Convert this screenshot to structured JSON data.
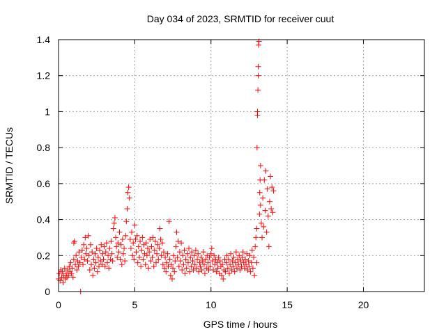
{
  "chart_data": {
    "type": "scatter",
    "title": "Day 034 of 2023, SRMTID for receiver cuut",
    "xlabel": "GPS time / hours",
    "ylabel": "SRMTID / TECUs",
    "xlim": [
      0,
      24
    ],
    "ylim": [
      0,
      1.4
    ],
    "xticks": [
      0,
      5,
      10,
      15,
      20
    ],
    "yticks": [
      0,
      0.2,
      0.4,
      0.6,
      0.8,
      1,
      1.2,
      1.4
    ],
    "ytick_labels": [
      "0",
      "0.2",
      "0.4",
      "0.6",
      "0.8",
      "1",
      "1.2",
      "1.4"
    ],
    "grid": true,
    "marker": "+",
    "color": "#ff0000",
    "series": [
      {
        "name": "SRMTID",
        "points": [
          [
            0.0,
            0.07
          ],
          [
            0.05,
            0.1
          ],
          [
            0.1,
            0.06
          ],
          [
            0.15,
            0.12
          ],
          [
            0.2,
            0.08
          ],
          [
            0.25,
            0.11
          ],
          [
            0.3,
            0.05
          ],
          [
            0.35,
            0.09
          ],
          [
            0.4,
            0.13
          ],
          [
            0.45,
            0.07
          ],
          [
            0.5,
            0.1
          ],
          [
            0.55,
            0.08
          ],
          [
            0.6,
            0.12
          ],
          [
            0.65,
            0.09
          ],
          [
            0.7,
            0.14
          ],
          [
            0.75,
            0.11
          ],
          [
            0.8,
            0.16
          ],
          [
            0.85,
            0.1
          ],
          [
            0.9,
            0.13
          ],
          [
            0.95,
            0.08
          ],
          [
            1.0,
            0.18
          ],
          [
            1.0,
            0.27
          ],
          [
            1.05,
            0.28
          ],
          [
            1.1,
            0.15
          ],
          [
            1.15,
            0.2
          ],
          [
            1.2,
            0.12
          ],
          [
            1.25,
            0.17
          ],
          [
            1.3,
            0.14
          ],
          [
            1.35,
            0.22
          ],
          [
            1.4,
            0.16
          ],
          [
            1.45,
            0.0
          ],
          [
            1.5,
            0.19
          ],
          [
            1.55,
            0.23
          ],
          [
            1.6,
            0.15
          ],
          [
            1.65,
            0.26
          ],
          [
            1.7,
            0.18
          ],
          [
            1.75,
            0.3
          ],
          [
            1.8,
            0.21
          ],
          [
            1.85,
            0.24
          ],
          [
            1.9,
            0.17
          ],
          [
            1.95,
            0.31
          ],
          [
            2.0,
            0.2
          ],
          [
            2.05,
            0.12
          ],
          [
            2.1,
            0.26
          ],
          [
            2.15,
            0.15
          ],
          [
            2.2,
            0.22
          ],
          [
            2.25,
            0.09
          ],
          [
            2.3,
            0.18
          ],
          [
            2.35,
            0.13
          ],
          [
            2.4,
            0.21
          ],
          [
            2.45,
            0.16
          ],
          [
            2.5,
            0.24
          ],
          [
            2.55,
            0.11
          ],
          [
            2.6,
            0.19
          ],
          [
            2.65,
            0.14
          ],
          [
            2.7,
            0.23
          ],
          [
            2.75,
            0.17
          ],
          [
            2.8,
            0.26
          ],
          [
            2.85,
            0.15
          ],
          [
            2.9,
            0.21
          ],
          [
            2.95,
            0.18
          ],
          [
            3.0,
            0.25
          ],
          [
            3.05,
            0.14
          ],
          [
            3.1,
            0.22
          ],
          [
            3.15,
            0.27
          ],
          [
            3.2,
            0.16
          ],
          [
            3.25,
            0.2
          ],
          [
            3.3,
            0.13
          ],
          [
            3.35,
            0.24
          ],
          [
            3.4,
            0.18
          ],
          [
            3.45,
            0.28
          ],
          [
            3.5,
            0.21
          ],
          [
            3.55,
            0.17
          ],
          [
            3.6,
            0.35
          ],
          [
            3.65,
            0.38
          ],
          [
            3.7,
            0.41
          ],
          [
            3.75,
            0.3
          ],
          [
            3.8,
            0.25
          ],
          [
            3.85,
            0.19
          ],
          [
            3.9,
            0.27
          ],
          [
            3.95,
            0.22
          ],
          [
            4.0,
            0.33
          ],
          [
            4.05,
            0.18
          ],
          [
            4.1,
            0.26
          ],
          [
            4.15,
            0.15
          ],
          [
            4.2,
            0.29
          ],
          [
            4.25,
            0.21
          ],
          [
            4.3,
            0.24
          ],
          [
            4.35,
            0.17
          ],
          [
            4.4,
            0.31
          ],
          [
            4.45,
            0.39
          ],
          [
            4.5,
            0.46
          ],
          [
            4.55,
            0.55
          ],
          [
            4.6,
            0.58
          ],
          [
            4.65,
            0.52
          ],
          [
            4.7,
            0.29
          ],
          [
            4.75,
            0.24
          ],
          [
            4.8,
            0.33
          ],
          [
            4.85,
            0.2
          ],
          [
            4.9,
            0.27
          ],
          [
            4.95,
            0.18
          ],
          [
            5.0,
            0.37
          ],
          [
            5.05,
            0.29
          ],
          [
            5.1,
            0.22
          ],
          [
            5.15,
            0.31
          ],
          [
            5.2,
            0.16
          ],
          [
            5.25,
            0.25
          ],
          [
            5.3,
            0.19
          ],
          [
            5.35,
            0.28
          ],
          [
            5.4,
            0.14
          ],
          [
            5.45,
            0.23
          ],
          [
            5.5,
            0.3
          ],
          [
            5.55,
            0.18
          ],
          [
            5.6,
            0.26
          ],
          [
            5.65,
            0.21
          ],
          [
            5.7,
            0.15
          ],
          [
            5.75,
            0.27
          ],
          [
            5.8,
            0.2
          ],
          [
            5.85,
            0.24
          ],
          [
            5.9,
            0.13
          ],
          [
            5.95,
            0.22
          ],
          [
            6.0,
            0.29
          ],
          [
            6.05,
            0.17
          ],
          [
            6.1,
            0.25
          ],
          [
            6.15,
            0.19
          ],
          [
            6.2,
            0.3
          ],
          [
            6.25,
            0.14
          ],
          [
            6.3,
            0.23
          ],
          [
            6.35,
            0.28
          ],
          [
            6.4,
            0.16
          ],
          [
            6.45,
            0.21
          ],
          [
            6.5,
            0.26
          ],
          [
            6.55,
            0.18
          ],
          [
            6.6,
            0.24
          ],
          [
            6.65,
            0.35
          ],
          [
            6.7,
            0.29
          ],
          [
            6.75,
            0.2
          ],
          [
            6.8,
            0.27
          ],
          [
            6.85,
            0.15
          ],
          [
            6.9,
            0.22
          ],
          [
            6.95,
            0.13
          ],
          [
            7.0,
            0.19
          ],
          [
            7.05,
            0.11
          ],
          [
            7.1,
            0.16
          ],
          [
            7.15,
            0.21
          ],
          [
            7.2,
            0.14
          ],
          [
            7.25,
            0.39
          ],
          [
            7.3,
            0.18
          ],
          [
            7.35,
            0.09
          ],
          [
            7.4,
            0.15
          ],
          [
            7.45,
            0.07
          ],
          [
            7.5,
            0.13
          ],
          [
            7.55,
            0.2
          ],
          [
            7.6,
            0.11
          ],
          [
            7.65,
            0.17
          ],
          [
            7.7,
            0.25
          ],
          [
            7.75,
            0.33
          ],
          [
            7.8,
            0.19
          ],
          [
            7.85,
            0.28
          ],
          [
            7.9,
            0.14
          ],
          [
            7.95,
            0.22
          ],
          [
            8.0,
            0.17
          ],
          [
            8.05,
            0.27
          ],
          [
            8.1,
            0.12
          ],
          [
            8.15,
            0.2
          ],
          [
            8.2,
            0.15
          ],
          [
            8.25,
            0.23
          ],
          [
            8.3,
            0.1
          ],
          [
            8.35,
            0.18
          ],
          [
            8.4,
            0.13
          ],
          [
            8.45,
            0.21
          ],
          [
            8.5,
            0.16
          ],
          [
            8.55,
            0.24
          ],
          [
            8.6,
            0.11
          ],
          [
            8.65,
            0.19
          ],
          [
            8.7,
            0.14
          ],
          [
            8.75,
            0.22
          ],
          [
            8.8,
            0.17
          ],
          [
            8.85,
            0.12
          ],
          [
            8.9,
            0.2
          ],
          [
            8.95,
            0.15
          ],
          [
            9.0,
            0.23
          ],
          [
            9.05,
            0.13
          ],
          [
            9.1,
            0.18
          ],
          [
            9.15,
            0.21
          ],
          [
            9.2,
            0.11
          ],
          [
            9.25,
            0.16
          ],
          [
            9.3,
            0.14
          ],
          [
            9.35,
            0.19
          ],
          [
            9.4,
            0.12
          ],
          [
            9.45,
            0.17
          ],
          [
            9.5,
            0.22
          ],
          [
            9.55,
            0.15
          ],
          [
            9.6,
            0.1
          ],
          [
            9.65,
            0.18
          ],
          [
            9.7,
            0.13
          ],
          [
            9.75,
            0.2
          ],
          [
            9.8,
            0.16
          ],
          [
            9.85,
            0.12
          ],
          [
            9.9,
            0.19
          ],
          [
            9.95,
            0.14
          ],
          [
            10.0,
            0.21
          ],
          [
            10.05,
            0.24
          ],
          [
            10.1,
            0.17
          ],
          [
            10.15,
            0.12
          ],
          [
            10.2,
            0.2
          ],
          [
            10.25,
            0.15
          ],
          [
            10.3,
            0.18
          ],
          [
            10.35,
            0.11
          ],
          [
            10.4,
            0.16
          ],
          [
            10.45,
            0.13
          ],
          [
            10.5,
            0.19
          ],
          [
            10.55,
            0.1
          ],
          [
            10.6,
            0.17
          ],
          [
            10.65,
            0.14
          ],
          [
            10.7,
            0.09
          ],
          [
            10.75,
            0.15
          ],
          [
            10.8,
            0.07
          ],
          [
            10.85,
            0.12
          ],
          [
            10.9,
            0.18
          ],
          [
            10.95,
            0.11
          ],
          [
            11.0,
            0.16
          ],
          [
            11.05,
            0.2
          ],
          [
            11.1,
            0.13
          ],
          [
            11.15,
            0.18
          ],
          [
            11.2,
            0.1
          ],
          [
            11.25,
            0.15
          ],
          [
            11.3,
            0.21
          ],
          [
            11.35,
            0.12
          ],
          [
            11.4,
            0.17
          ],
          [
            11.45,
            0.14
          ],
          [
            11.5,
            0.19
          ],
          [
            11.55,
            0.11
          ],
          [
            11.6,
            0.16
          ],
          [
            11.65,
            0.22
          ],
          [
            11.7,
            0.13
          ],
          [
            11.75,
            0.18
          ],
          [
            11.8,
            0.15
          ],
          [
            11.85,
            0.2
          ],
          [
            11.9,
            0.12
          ],
          [
            11.95,
            0.17
          ],
          [
            12.0,
            0.14
          ],
          [
            12.05,
            0.19
          ],
          [
            12.1,
            0.22
          ],
          [
            12.15,
            0.16
          ],
          [
            12.2,
            0.13
          ],
          [
            12.25,
            0.18
          ],
          [
            12.3,
            0.15
          ],
          [
            12.35,
            0.21
          ],
          [
            12.4,
            0.12
          ],
          [
            12.45,
            0.17
          ],
          [
            12.5,
            0.14
          ],
          [
            12.55,
            0.2
          ],
          [
            12.6,
            0.11
          ],
          [
            12.65,
            0.16
          ],
          [
            12.7,
            0.23
          ],
          [
            12.75,
            0.13
          ],
          [
            12.8,
            0.19
          ],
          [
            12.85,
            0.09
          ],
          [
            12.9,
            0.25
          ],
          [
            12.95,
            0.3
          ],
          [
            13.0,
            0.16
          ],
          [
            13.0,
            0.35
          ],
          [
            13.02,
            0.8
          ],
          [
            13.05,
            1.0
          ],
          [
            13.05,
            0.98
          ],
          [
            13.08,
            1.12
          ],
          [
            13.1,
            1.2
          ],
          [
            13.1,
            1.25
          ],
          [
            13.12,
            1.37
          ],
          [
            13.15,
            1.39
          ],
          [
            13.18,
            0.43
          ],
          [
            13.2,
            0.55
          ],
          [
            13.22,
            0.62
          ],
          [
            13.25,
            0.7
          ],
          [
            13.25,
            0.48
          ],
          [
            13.3,
            0.38
          ],
          [
            13.35,
            0.3
          ],
          [
            13.4,
            0.52
          ],
          [
            13.45,
            0.36
          ],
          [
            13.5,
            0.62
          ],
          [
            13.55,
            0.45
          ],
          [
            13.6,
            0.67
          ],
          [
            13.65,
            0.33
          ],
          [
            13.7,
            0.57
          ],
          [
            13.75,
            0.42
          ],
          [
            13.8,
            0.25
          ],
          [
            13.85,
            0.5
          ],
          [
            13.9,
            0.64
          ],
          [
            13.95,
            0.46
          ],
          [
            14.0,
            0.58
          ],
          [
            14.05,
            0.44
          ],
          [
            14.1,
            0.56
          ]
        ]
      }
    ]
  }
}
